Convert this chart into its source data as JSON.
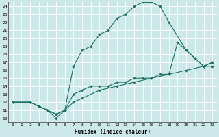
{
  "xlabel": "Humidex (Indice chaleur)",
  "bg_color": "#cce8e8",
  "line_color": "#1a7060",
  "grid_color": "#ffffff",
  "xlim": [
    -0.5,
    23.5
  ],
  "ylim": [
    9.5,
    24.5
  ],
  "xticks": [
    0,
    1,
    2,
    3,
    4,
    5,
    6,
    7,
    8,
    9,
    10,
    11,
    12,
    13,
    14,
    15,
    16,
    17,
    18,
    19,
    20,
    21,
    22,
    23
  ],
  "yticks": [
    10,
    11,
    12,
    13,
    14,
    15,
    16,
    17,
    18,
    19,
    20,
    21,
    22,
    23,
    24
  ],
  "curve1_x": [
    0,
    2,
    3,
    4,
    5,
    6,
    7,
    8,
    9,
    10,
    11,
    12,
    13,
    14,
    15,
    16,
    17,
    18,
    20,
    21,
    22,
    23
  ],
  "curve1_y": [
    12,
    12,
    11.5,
    11,
    10,
    11,
    16.5,
    18.5,
    19,
    20.5,
    21,
    22.5,
    23,
    24,
    24.5,
    24.5,
    24,
    22,
    18.5,
    17.5,
    16.5,
    17
  ],
  "curve2_x": [
    0,
    2,
    3,
    4,
    5,
    6,
    7,
    8,
    9,
    10,
    11,
    12,
    13,
    14,
    15,
    16,
    17,
    18,
    19,
    20,
    21,
    22,
    23
  ],
  "curve2_y": [
    12,
    12,
    11.5,
    11,
    10.5,
    11,
    13,
    13.5,
    14,
    14,
    14,
    14.5,
    14.5,
    15,
    15,
    15,
    15.5,
    15.5,
    19.5,
    18.5,
    17.5,
    16.5,
    17
  ],
  "curve3_x": [
    0,
    2,
    3,
    4,
    5,
    6,
    7,
    8,
    10,
    12,
    14,
    16,
    18,
    20,
    22,
    23
  ],
  "curve3_y": [
    12,
    12,
    11.5,
    11,
    10.5,
    11,
    12,
    12.5,
    13.5,
    14,
    14.5,
    15,
    15.5,
    16,
    16.5,
    16.5
  ]
}
